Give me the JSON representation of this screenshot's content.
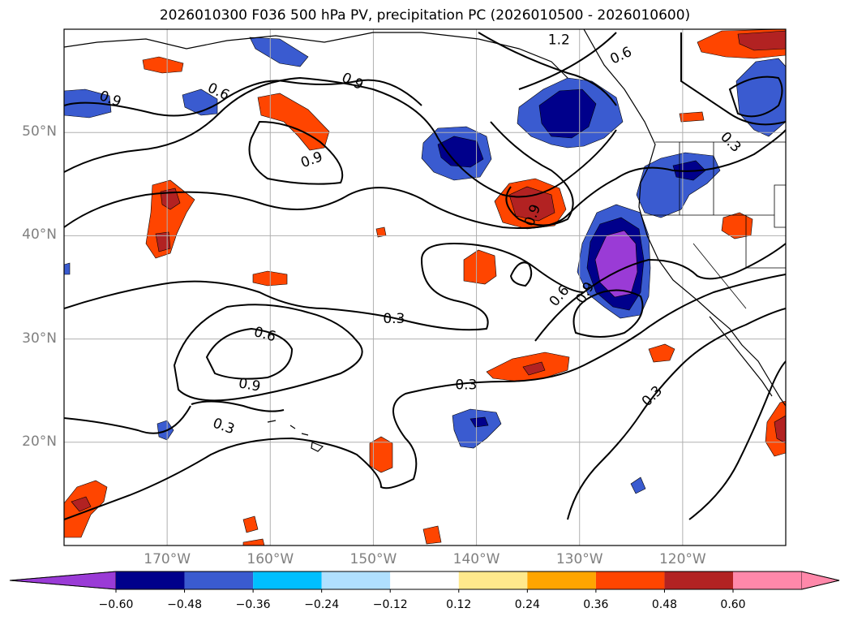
{
  "title": "2026010300 F036 500 hPa PV, precipitation PC (2026010500 - 2026010600)",
  "map": {
    "lon_range": [
      -180,
      -110
    ],
    "lat_range": [
      10,
      60
    ],
    "lat_ticks": [
      {
        "value": 50,
        "label": "50°N"
      },
      {
        "value": 40,
        "label": "40°N"
      },
      {
        "value": 30,
        "label": "30°N"
      },
      {
        "value": 20,
        "label": "20°N"
      }
    ],
    "lon_ticks": [
      {
        "value": -170,
        "label": "170°W"
      },
      {
        "value": -160,
        "label": "160°W"
      },
      {
        "value": -150,
        "label": "150°W"
      },
      {
        "value": -140,
        "label": "140°W"
      },
      {
        "value": -130,
        "label": "130°W"
      },
      {
        "value": -120,
        "label": "120°W"
      }
    ],
    "gridlines": true
  },
  "colorbar": {
    "levels": [
      -0.6,
      -0.48,
      -0.36,
      -0.24,
      -0.12,
      0.12,
      0.24,
      0.36,
      0.48,
      0.6
    ],
    "tick_labels": [
      "−0.60",
      "−0.48",
      "−0.36",
      "−0.24",
      "−0.12",
      "0.12",
      "0.24",
      "0.36",
      "0.48",
      "0.60"
    ],
    "colors": [
      "#9a3bd6",
      "#00008b",
      "#3a5bd0",
      "#00bfff",
      "#b0e0ff",
      "#ffffff",
      "#ffe98c",
      "#ffa500",
      "#ff4500",
      "#b22222",
      "#ff88aa"
    ],
    "extend": "both"
  },
  "contour_labels": [
    {
      "text": "0.9",
      "lon": -175.5,
      "lat": 53.3,
      "rot": 20
    },
    {
      "text": "0.6",
      "lon": -165.0,
      "lat": 54.0,
      "rot": 25
    },
    {
      "text": "0.9",
      "lon": -152.0,
      "lat": 55.0,
      "rot": 25
    },
    {
      "text": "0.9",
      "lon": -156.0,
      "lat": 47.4,
      "rot": -20
    },
    {
      "text": "1.2",
      "lon": -132.0,
      "lat": 59.0,
      "rot": 0
    },
    {
      "text": "0.6",
      "lon": -126.0,
      "lat": 57.5,
      "rot": -25
    },
    {
      "text": "0.9",
      "lon": -134.6,
      "lat": 42.0,
      "rot": -70
    },
    {
      "text": "0.3",
      "lon": -115.3,
      "lat": 49.1,
      "rot": 45
    },
    {
      "text": "0.3",
      "lon": -148.0,
      "lat": 32.0,
      "rot": 0
    },
    {
      "text": "0.6",
      "lon": -160.5,
      "lat": 30.5,
      "rot": 15
    },
    {
      "text": "0.9",
      "lon": -162.0,
      "lat": 25.6,
      "rot": 10
    },
    {
      "text": "0.3",
      "lon": -164.5,
      "lat": 21.6,
      "rot": 20
    },
    {
      "text": "0.3",
      "lon": -141.0,
      "lat": 25.6,
      "rot": 0
    },
    {
      "text": "0.6",
      "lon": -132.0,
      "lat": 34.2,
      "rot": -50
    },
    {
      "text": "0.9",
      "lon": -129.5,
      "lat": 34.5,
      "rot": -60
    },
    {
      "text": "0.3",
      "lon": -123.0,
      "lat": 24.5,
      "rot": -45
    }
  ]
}
